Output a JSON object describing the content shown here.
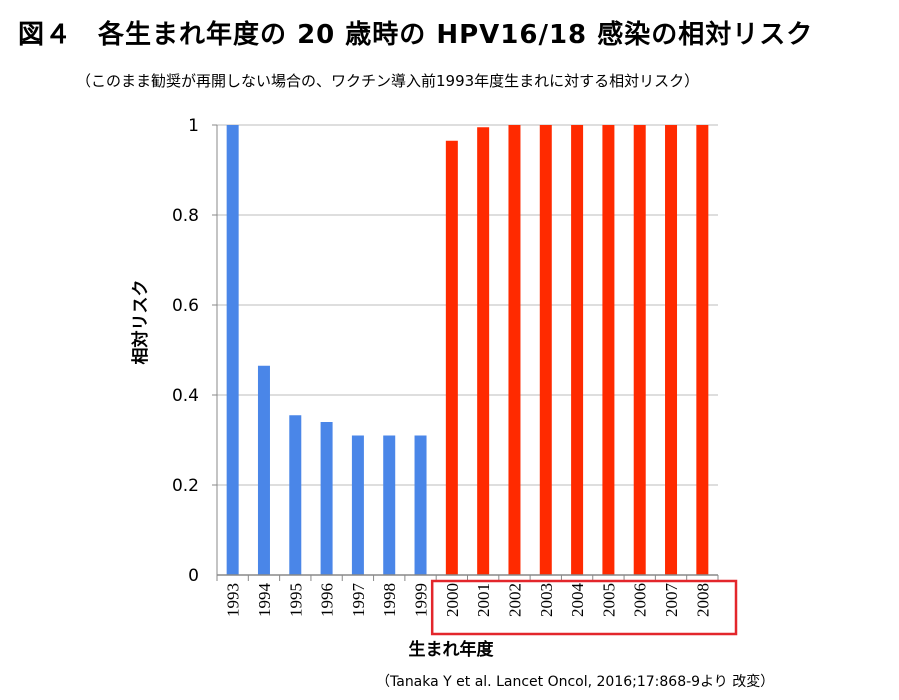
{
  "figure": {
    "number": "図４",
    "title": "各生まれ年度の 20 歳時の HPV16/18 感染の相対リスク",
    "subtitle": "（このまま勧奨が再開しない場合の、ワクチン導入前1993年度生まれに対する相対リスク）",
    "citation": "（Tanaka Y et al. Lancet Oncol, 2016;17:868-9より 改変）"
  },
  "chart_data": {
    "type": "bar",
    "categories": [
      "1993",
      "1994",
      "1995",
      "1996",
      "1997",
      "1998",
      "1999",
      "2000",
      "2001",
      "2002",
      "2003",
      "2004",
      "2005",
      "2006",
      "2007",
      "2008"
    ],
    "values": [
      1.0,
      0.465,
      0.355,
      0.34,
      0.31,
      0.31,
      0.31,
      0.965,
      0.995,
      1.0,
      1.0,
      1.0,
      1.0,
      1.0,
      1.0,
      1.0
    ],
    "colors": [
      "#4a86e8",
      "#4a86e8",
      "#4a86e8",
      "#4a86e8",
      "#4a86e8",
      "#4a86e8",
      "#4a86e8",
      "#ff2a00",
      "#ff2a00",
      "#ff2a00",
      "#ff2a00",
      "#ff2a00",
      "#ff2a00",
      "#ff2a00",
      "#ff2a00",
      "#ff2a00"
    ],
    "ylabel": "相対リスク",
    "xlabel": "生まれ年度",
    "ylim": [
      0,
      1
    ],
    "yticks": [
      "0",
      "0.2",
      "0.4",
      "0.6",
      "0.8",
      "1"
    ],
    "grid": true,
    "highlight_range": [
      "2000",
      "2008"
    ],
    "highlight_color": "#e3262b"
  }
}
